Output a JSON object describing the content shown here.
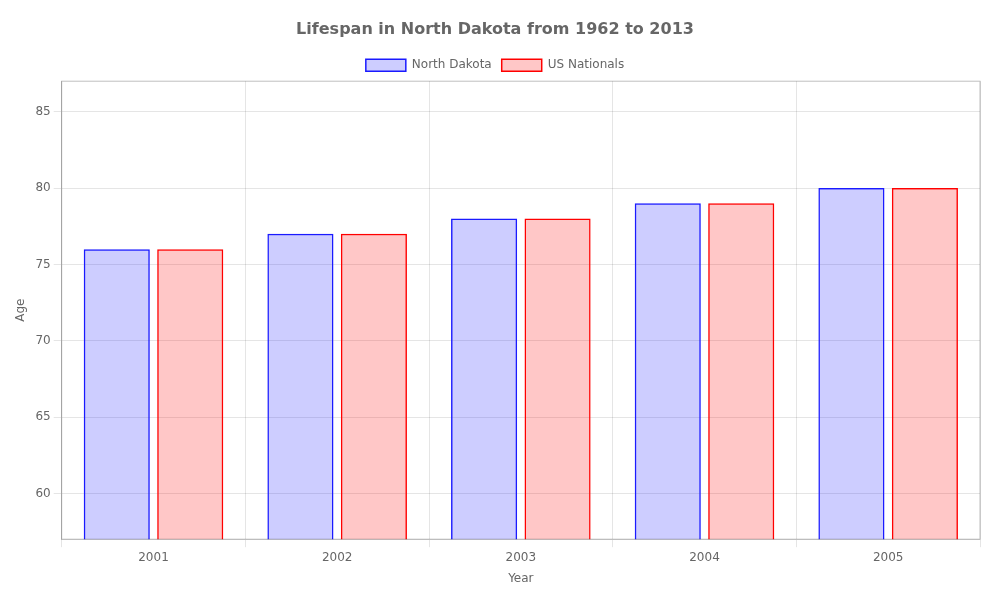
{
  "chart_data": {
    "type": "bar",
    "title": "Lifespan in North Dakota from 1962 to 2013",
    "xlabel": "Year",
    "ylabel": "Age",
    "categories": [
      "2001",
      "2002",
      "2003",
      "2004",
      "2005"
    ],
    "series": [
      {
        "name": "North Dakota",
        "color": "#1a1aff",
        "values": [
          76.0,
          77.0,
          78.0,
          79.0,
          80.0
        ]
      },
      {
        "name": "US Nationals",
        "color": "#ff0000",
        "values": [
          76.0,
          77.0,
          78.0,
          79.0,
          80.0
        ]
      }
    ],
    "ylim": [
      57,
      87
    ],
    "yticks": [
      60,
      65,
      70,
      75,
      80,
      85
    ],
    "grid": true,
    "legend": "top"
  }
}
